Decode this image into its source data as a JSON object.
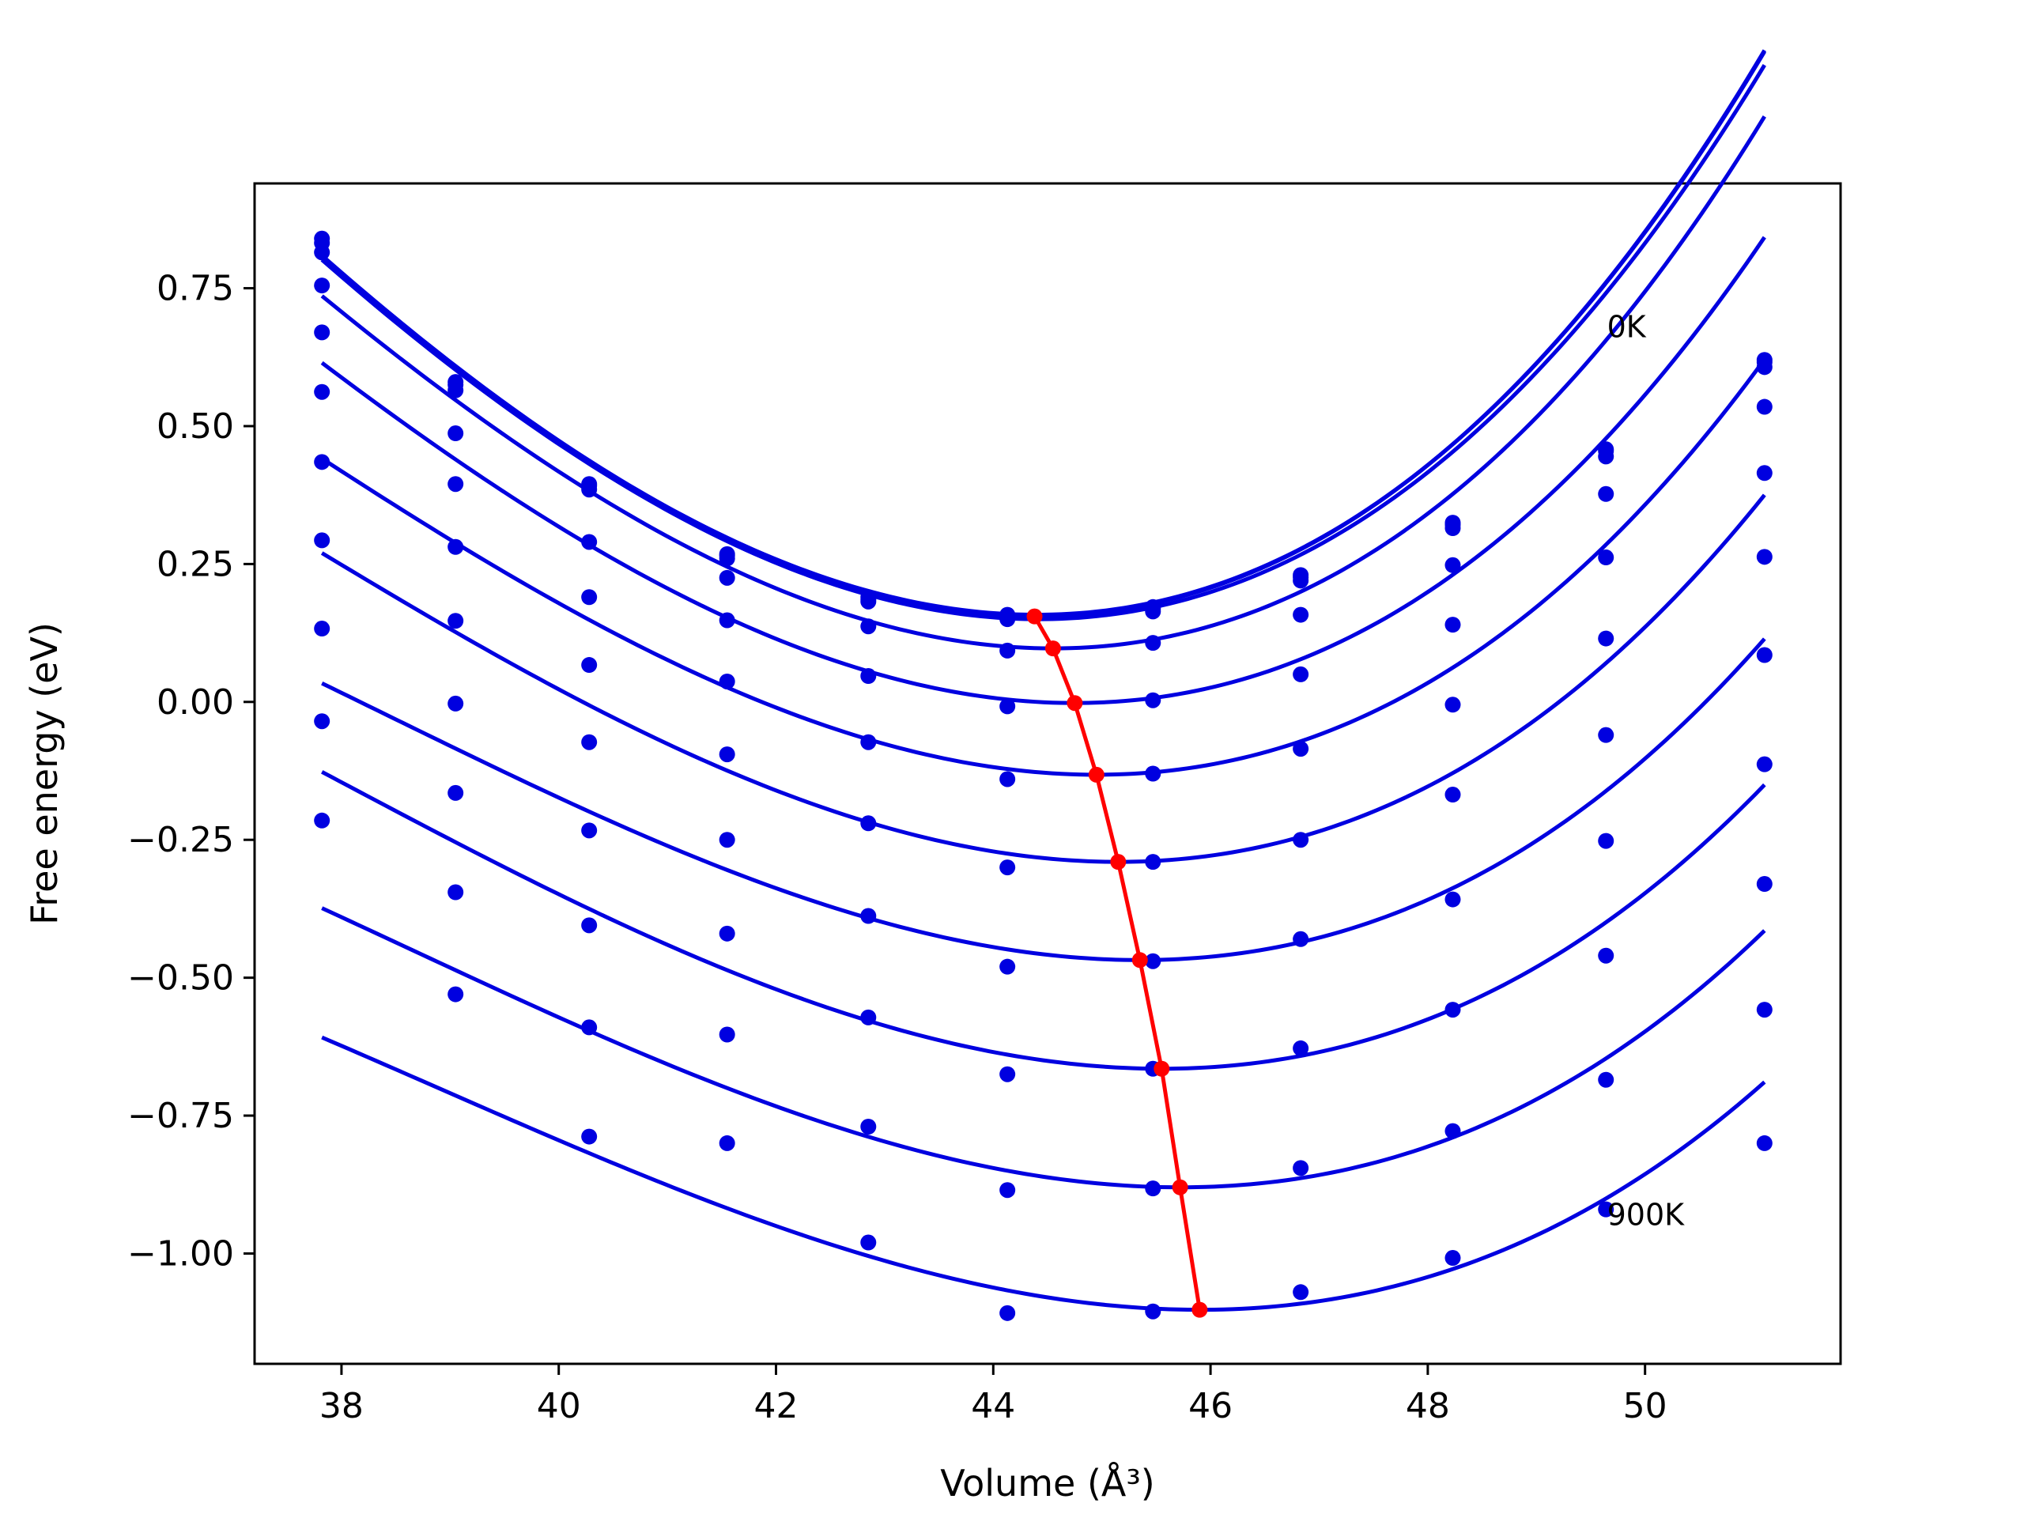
{
  "chart_data": {
    "type": "line",
    "title": "",
    "xlabel": "Volume (Å³)",
    "ylabel": "Free energy (eV)",
    "xlim": [
      37.2,
      51.8
    ],
    "ylim": [
      -1.2,
      0.94
    ],
    "x_ticks": [
      38,
      40,
      42,
      44,
      46,
      48,
      50
    ],
    "y_ticks": [
      -1.0,
      -0.75,
      -0.5,
      -0.25,
      0.0,
      0.25,
      0.5,
      0.75
    ],
    "x_tick_labels": [
      "38",
      "40",
      "42",
      "44",
      "46",
      "48",
      "50"
    ],
    "y_tick_labels": [
      "−1.00",
      "−0.75",
      "−0.50",
      "−0.25",
      "0.00",
      "0.25",
      "0.50",
      "0.75"
    ],
    "grid": false,
    "legend": "none",
    "colors": {
      "curves": "#0000e0",
      "points": "#0000e0",
      "minima": "#ff0000"
    },
    "annotations": [
      {
        "text": "0K",
        "x": 49.65,
        "y": 0.68
      },
      {
        "text": "900K",
        "x": 49.65,
        "y": -0.93
      }
    ],
    "volumes": [
      37.82,
      39.05,
      40.28,
      41.55,
      42.85,
      44.13,
      45.47,
      46.83,
      48.23,
      49.64,
      51.1
    ],
    "series": [
      {
        "fit": {
          "v0": 44.4,
          "e0": 0.158,
          "k": 0.01886,
          "c3": 0.00058
        },
        "points": [
          0.84,
          0.58,
          0.395,
          0.268,
          0.19,
          0.158,
          0.172,
          0.23,
          0.325,
          0.458,
          0.62
        ]
      },
      {
        "fit": {
          "v0": 44.38,
          "e0": 0.155,
          "k": 0.01883,
          "c3": 0.00058
        },
        "points": [
          0.832,
          0.575,
          0.392,
          0.265,
          0.186,
          0.155,
          0.169,
          0.226,
          0.321,
          0.455,
          0.616
        ]
      },
      {
        "fit": {
          "v0": 44.42,
          "e0": 0.15,
          "k": 0.01877,
          "c3": 0.00056
        },
        "points": [
          0.815,
          0.565,
          0.385,
          0.26,
          0.182,
          0.15,
          0.164,
          0.22,
          0.315,
          0.445,
          0.607
        ]
      },
      {
        "fit": {
          "v0": 44.55,
          "e0": 0.097,
          "k": 0.01835,
          "c3": 0.00063
        },
        "points": [
          0.755,
          0.487,
          0.29,
          0.225,
          0.137,
          0.093,
          0.107,
          0.158,
          0.248,
          0.377,
          0.535
        ]
      },
      {
        "fit": {
          "v0": 44.75,
          "e0": -0.002,
          "k": 0.01707,
          "c3": 0.00061
        },
        "points": [
          0.67,
          0.395,
          0.19,
          0.148,
          0.047,
          -0.008,
          0.003,
          0.05,
          0.14,
          0.262,
          0.415
        ]
      },
      {
        "fit": {
          "v0": 44.95,
          "e0": -0.132,
          "k": 0.01591,
          "c3": 0.00065
        },
        "points": [
          0.562,
          0.281,
          0.067,
          0.037,
          -0.073,
          -0.14,
          -0.13,
          -0.085,
          -0.005,
          0.115,
          0.263
        ]
      },
      {
        "fit": {
          "v0": 45.15,
          "e0": -0.29,
          "k": 0.01504,
          "c3": 0.00063
        },
        "points": [
          0.435,
          0.147,
          -0.073,
          -0.095,
          -0.22,
          -0.3,
          -0.29,
          -0.25,
          -0.168,
          -0.06,
          0.085
        ]
      },
      {
        "fit": {
          "v0": 45.35,
          "e0": -0.468,
          "k": 0.01382,
          "c3": 0.00066
        },
        "points": [
          0.293,
          -0.003,
          -0.233,
          -0.25,
          -0.388,
          -0.48,
          -0.47,
          -0.43,
          -0.358,
          -0.252,
          -0.113
        ]
      },
      {
        "fit": {
          "v0": 45.55,
          "e0": -0.665,
          "k": 0.01349,
          "c3": 0.00058
        },
        "points": [
          0.133,
          -0.165,
          -0.405,
          -0.42,
          -0.572,
          -0.675,
          -0.665,
          -0.628,
          -0.558,
          -0.46,
          -0.33
        ]
      },
      {
        "fit": {
          "v0": 45.72,
          "e0": -0.88,
          "k": 0.01285,
          "c3": 0.0006
        },
        "points": [
          -0.035,
          -0.345,
          -0.59,
          -0.603,
          -0.77,
          -0.885,
          -0.882,
          -0.845,
          -0.778,
          -0.685,
          -0.558
        ]
      },
      {
        "fit": {
          "v0": 45.9,
          "e0": -1.102,
          "k": 0.01225,
          "c3": 0.00058
        },
        "points": [
          -0.215,
          -0.53,
          -0.788,
          -0.8,
          -0.98,
          -1.108,
          -1.105,
          -1.07,
          -1.008,
          -0.92,
          -0.8
        ]
      }
    ],
    "minima_line": {
      "x": [
        44.38,
        44.55,
        44.75,
        44.95,
        45.15,
        45.35,
        45.55,
        45.72,
        45.9
      ],
      "y": [
        0.155,
        0.097,
        -0.002,
        -0.132,
        -0.29,
        -0.468,
        -0.665,
        -0.88,
        -1.102
      ]
    }
  }
}
